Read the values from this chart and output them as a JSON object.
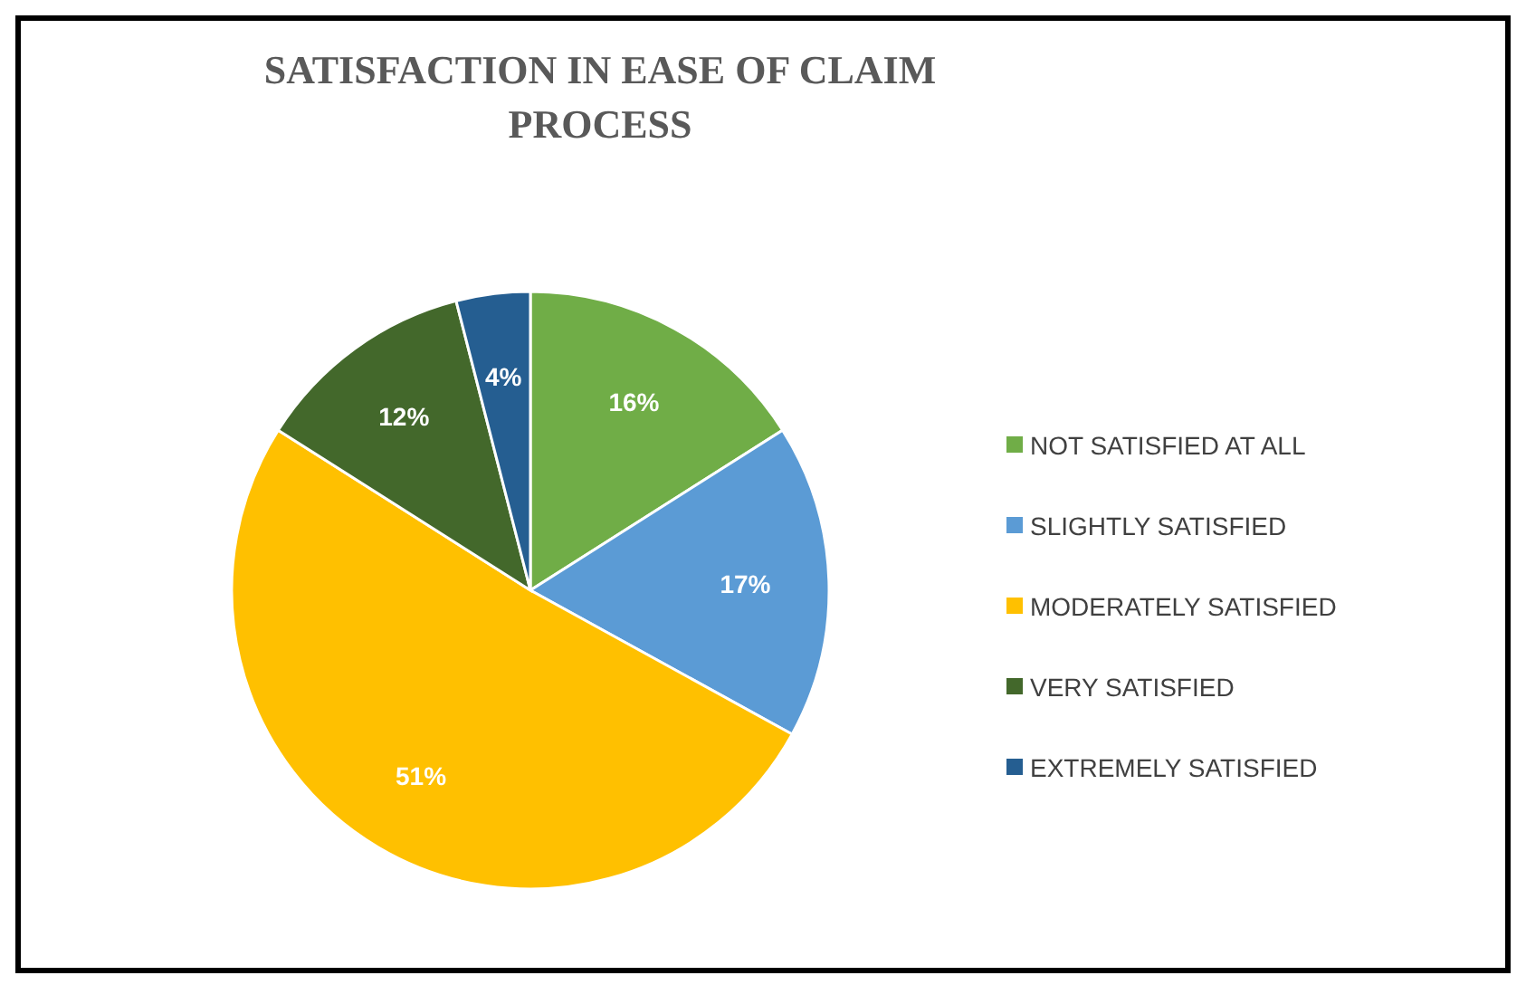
{
  "chart_data": {
    "type": "pie",
    "title": "SATISFACTION IN EASE OF CLAIM PROCESS",
    "categories": [
      "NOT SATISFIED AT ALL",
      "SLIGHTLY SATISFIED",
      "MODERATELY SATISFIED",
      "VERY SATISFIED",
      "EXTREMELY SATISFIED"
    ],
    "values": [
      16,
      17,
      51,
      12,
      4
    ],
    "colors": [
      "#70ad47",
      "#5b9bd5",
      "#ffc000",
      "#43682b",
      "#255e91"
    ],
    "value_labels": [
      "16%",
      "17%",
      "51%",
      "12%",
      "4%"
    ],
    "legend": "right"
  }
}
